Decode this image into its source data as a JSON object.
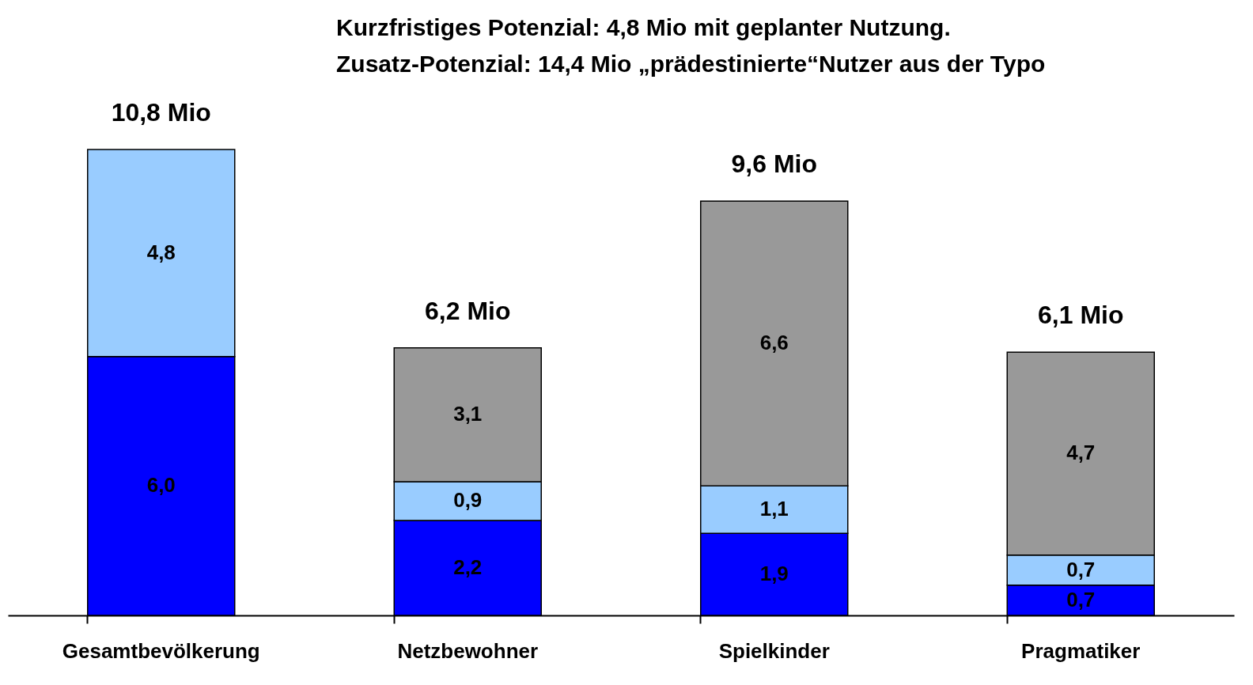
{
  "chart_data": {
    "type": "bar",
    "stacked": true,
    "categories": [
      "Gesamtbevölkerung",
      "Netzbewohner",
      "Spielkinder",
      "Pragmatiker"
    ],
    "series": [
      {
        "color": "#0000ff",
        "values": [
          6.0,
          2.2,
          1.9,
          0.7
        ],
        "value_labels": [
          "6,0",
          "2,2",
          "1,9",
          "0,7"
        ]
      },
      {
        "color": "#99ccff",
        "values": [
          4.8,
          0.9,
          1.1,
          0.7
        ],
        "value_labels": [
          "4,8",
          "0,9",
          "1,1",
          "0,7"
        ]
      },
      {
        "color": "#999999",
        "values": [
          null,
          3.1,
          6.6,
          4.7
        ],
        "value_labels": [
          null,
          "3,1",
          "6,6",
          "4,7"
        ]
      }
    ],
    "totals": [
      "10,8 Mio",
      "6,2 Mio",
      "9,6 Mio",
      "6,1 Mio"
    ],
    "annotations": [
      "Kurzfristiges Potenzial: 4,8 Mio mit geplanter Nutzung.",
      "Zusatz-Potenzial: 14,4 Mio „prädestinierte“Nutzer aus der Typo"
    ],
    "grid": false,
    "legend": false
  }
}
